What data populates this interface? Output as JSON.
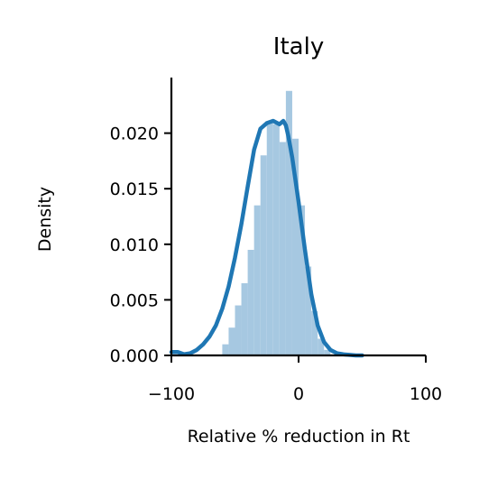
{
  "chart_data": {
    "type": "histogram",
    "title": "Italy",
    "xlabel": "Relative % reduction in Rt",
    "ylabel": "Density",
    "xlim": [
      -100,
      100
    ],
    "ylim": [
      0,
      0.025
    ],
    "xticks": [
      -100,
      0,
      100
    ],
    "xtick_labels": [
      "−100",
      "0",
      "100"
    ],
    "yticks": [
      0.0,
      0.005,
      0.01,
      0.015,
      0.02
    ],
    "ytick_labels": [
      "0.000",
      "0.005",
      "0.010",
      "0.015",
      "0.020"
    ],
    "grid": false,
    "legend": "none",
    "histogram": {
      "bin_width": 5,
      "bins": [
        {
          "x0": -60,
          "value": 0.001
        },
        {
          "x0": -55,
          "value": 0.0025
        },
        {
          "x0": -50,
          "value": 0.0045
        },
        {
          "x0": -45,
          "value": 0.0065
        },
        {
          "x0": -40,
          "value": 0.0095
        },
        {
          "x0": -35,
          "value": 0.0135
        },
        {
          "x0": -30,
          "value": 0.018
        },
        {
          "x0": -25,
          "value": 0.0211
        },
        {
          "x0": -20,
          "value": 0.0208
        },
        {
          "x0": -15,
          "value": 0.0192
        },
        {
          "x0": -10,
          "value": 0.0238
        },
        {
          "x0": -5,
          "value": 0.0195
        },
        {
          "x0": 0,
          "value": 0.0135
        },
        {
          "x0": 5,
          "value": 0.008
        },
        {
          "x0": 10,
          "value": 0.004
        },
        {
          "x0": 15,
          "value": 0.0015
        },
        {
          "x0": 20,
          "value": 0.0005
        }
      ]
    },
    "kde": {
      "x": [
        -100,
        -95,
        -90,
        -85,
        -80,
        -75,
        -70,
        -65,
        -60,
        -55,
        -50,
        -45,
        -40,
        -35,
        -30,
        -25,
        -20,
        -15,
        -12,
        -10,
        -8,
        -5,
        0,
        5,
        10,
        15,
        20,
        25,
        30,
        35,
        40,
        45,
        50
      ],
      "y": [
        0.0003,
        0.0003,
        0.0001,
        0.0002,
        0.0005,
        0.001,
        0.0017,
        0.0027,
        0.0042,
        0.0062,
        0.0088,
        0.0118,
        0.0152,
        0.0185,
        0.0204,
        0.0209,
        0.0211,
        0.0208,
        0.0211,
        0.0207,
        0.0197,
        0.0178,
        0.0138,
        0.0095,
        0.0055,
        0.0027,
        0.0012,
        0.0005,
        0.0002,
        0.0001,
        5e-05,
        0.0,
        0.0
      ]
    },
    "colors": {
      "bar": "#a6c8e1",
      "line": "#1f77b4",
      "axis": "#000000"
    }
  }
}
